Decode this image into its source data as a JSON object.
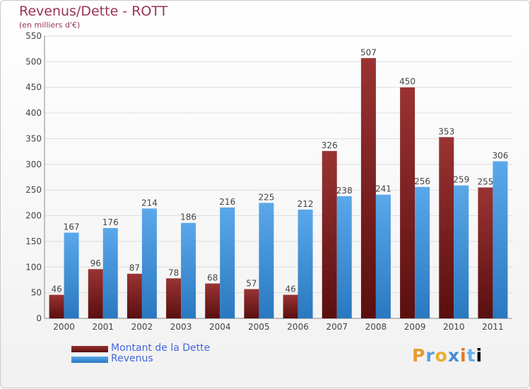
{
  "header": {
    "title": "Revenus/Dette - ROTT",
    "subtitle": "(en milliers d'€)"
  },
  "brand": [
    "P",
    "r",
    "o",
    "x",
    "i",
    "t",
    "i"
  ],
  "legend": {
    "debt_label": "Montant de la Dette",
    "revenue_label": "Revenus"
  },
  "colors": {
    "debt": "#7a1f1f",
    "revenue": "#3f95e0",
    "text": "#993355",
    "legend_text": "#4466dd"
  },
  "chart_data": {
    "type": "bar",
    "categories": [
      "2000",
      "2001",
      "2002",
      "2003",
      "2004",
      "2005",
      "2006",
      "2007",
      "2008",
      "2009",
      "2010",
      "2011"
    ],
    "series": [
      {
        "name": "Montant de la Dette",
        "values": [
          46,
          96,
          87,
          78,
          68,
          57,
          46,
          326,
          507,
          450,
          353,
          255
        ]
      },
      {
        "name": "Revenus",
        "values": [
          167,
          176,
          214,
          186,
          216,
          225,
          212,
          238,
          241,
          256,
          259,
          306
        ]
      }
    ],
    "yticks": [
      0,
      50,
      100,
      150,
      200,
      250,
      300,
      350,
      400,
      450,
      500,
      550
    ],
    "ylim": [
      0,
      550
    ],
    "grid": true,
    "legend_position": "bottom-left"
  }
}
